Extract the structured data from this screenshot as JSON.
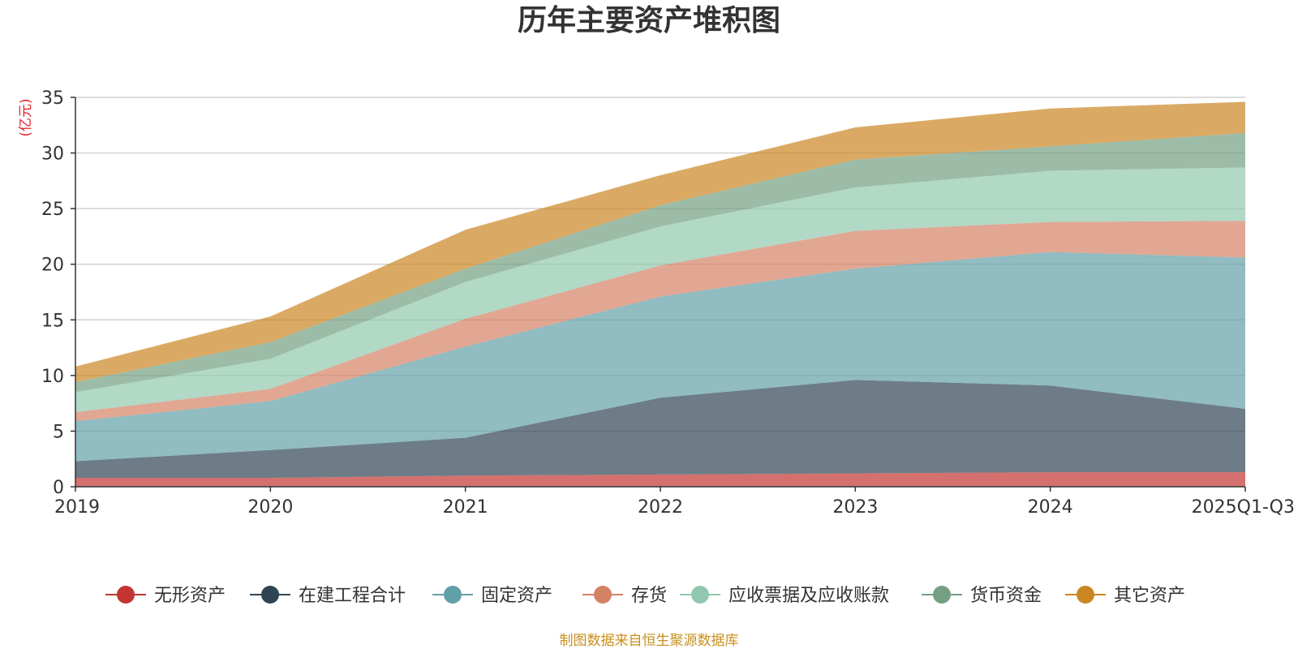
{
  "chart_data": {
    "type": "area",
    "stacked": true,
    "title": "历年主要资产堆积图",
    "ylabel": "(亿元)",
    "xlabel": "",
    "ylim": [
      0,
      35
    ],
    "yticks": [
      0,
      5,
      10,
      15,
      20,
      25,
      30,
      35
    ],
    "categories": [
      "2019",
      "2020",
      "2021",
      "2022",
      "2023",
      "2024",
      "2025Q1-Q3"
    ],
    "grid": true,
    "legend_position": "bottom",
    "series": [
      {
        "name": "无形资产",
        "color": "#c23531",
        "values": [
          0.8,
          0.8,
          1.0,
          1.1,
          1.2,
          1.3,
          1.3
        ]
      },
      {
        "name": "在建工程合计",
        "color": "#2f4554",
        "values": [
          1.5,
          2.5,
          3.4,
          6.9,
          8.4,
          7.8,
          5.7
        ]
      },
      {
        "name": "固定资产",
        "color": "#61a0a8",
        "values": [
          3.6,
          4.4,
          8.2,
          9.1,
          10.0,
          12.0,
          13.6
        ]
      },
      {
        "name": "存货",
        "color": "#d48265",
        "values": [
          0.8,
          1.1,
          2.5,
          2.8,
          3.4,
          2.7,
          3.3
        ]
      },
      {
        "name": "应收票据及应收账款",
        "color": "#91c7ae",
        "values": [
          1.8,
          2.7,
          3.3,
          3.5,
          3.9,
          4.6,
          4.8
        ]
      },
      {
        "name": "货币资金",
        "color": "#749f83",
        "values": [
          0.9,
          1.5,
          1.2,
          1.9,
          2.5,
          2.2,
          3.1
        ]
      },
      {
        "name": "其它资产",
        "color": "#ca8622",
        "values": [
          1.4,
          2.3,
          3.5,
          2.7,
          2.9,
          3.4,
          2.8
        ]
      }
    ]
  },
  "footer": {
    "source": "制图数据来自恒生聚源数据库"
  }
}
